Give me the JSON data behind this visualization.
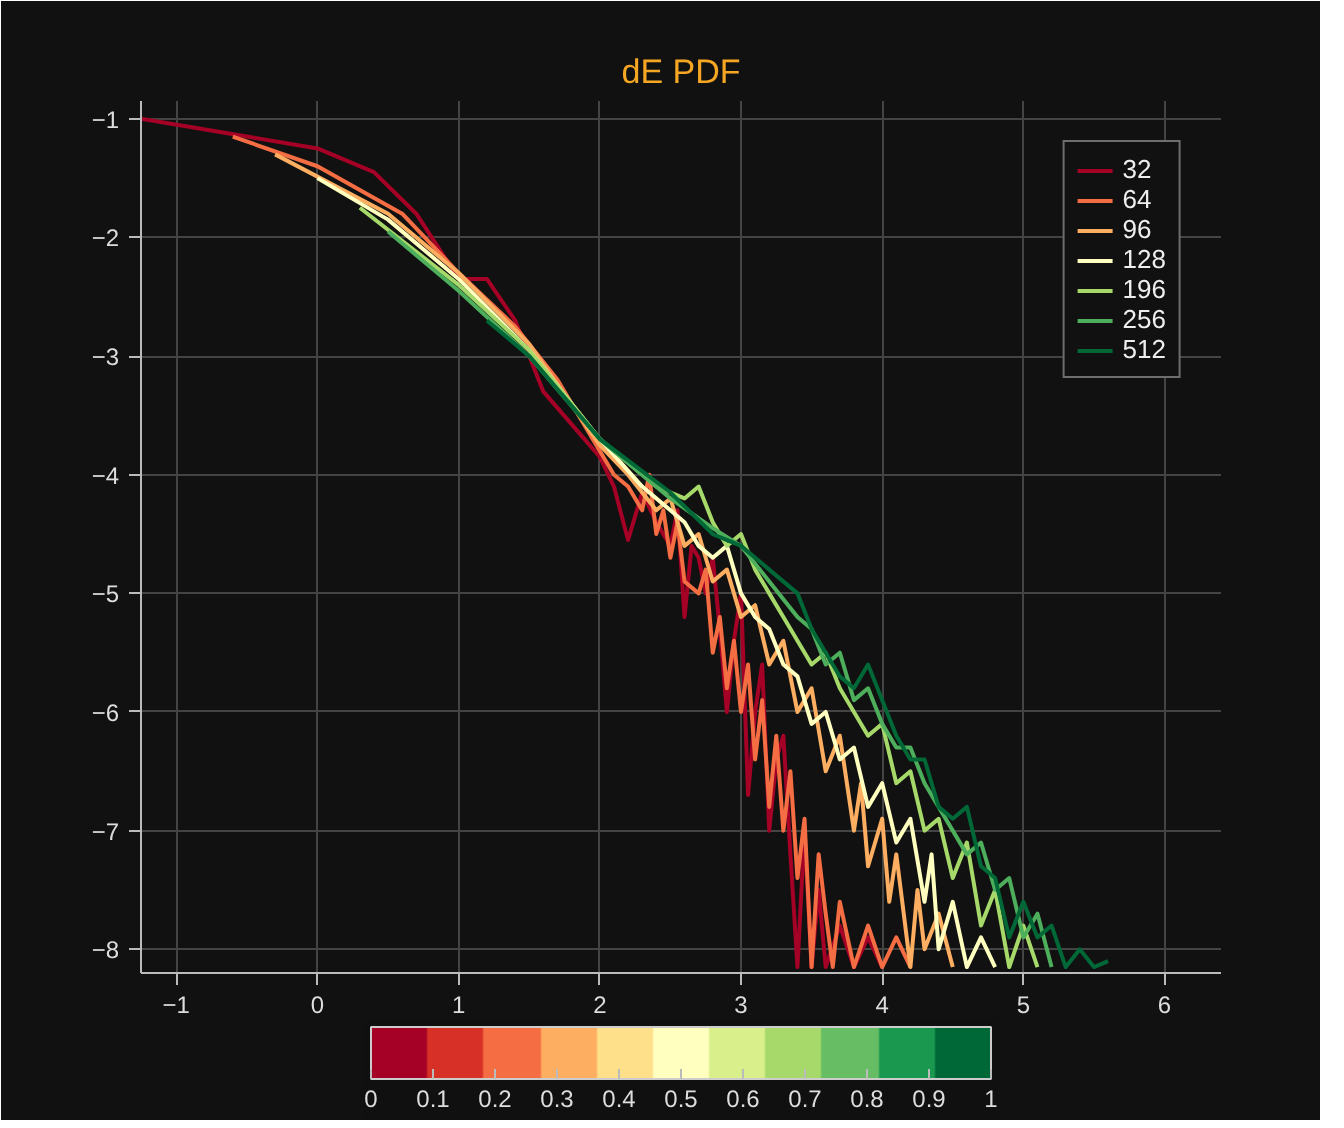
{
  "chart_data": {
    "type": "line",
    "title": "dE PDF",
    "xlim": [
      -1.25,
      6.4
    ],
    "ylim": [
      -8.2,
      -0.85
    ],
    "xticks": [
      -1,
      0,
      1,
      2,
      3,
      4,
      5,
      6
    ],
    "yticks": [
      -1,
      -2,
      -3,
      -4,
      -5,
      -6,
      -7,
      -8
    ],
    "grid": true,
    "legend": "top right",
    "line_style": "solid",
    "clim": [
      0,
      1
    ],
    "cticks": [
      0,
      0.1,
      0.2,
      0.3,
      0.4,
      0.5,
      0.6,
      0.7,
      0.8,
      0.9,
      1
    ],
    "series": [
      {
        "name": "32",
        "color": "#a50026",
        "x": [
          -1.25,
          -0.5,
          0,
          0.4,
          0.7,
          1.0,
          1.2,
          1.4,
          1.6,
          2.0,
          2.1,
          2.2,
          2.3,
          2.4,
          2.5,
          2.55,
          2.6,
          2.65,
          2.7,
          2.75,
          2.8,
          2.85,
          2.9,
          2.95,
          3.0,
          3.05,
          3.1,
          3.15,
          3.2,
          3.25,
          3.3,
          3.35,
          3.4,
          3.45,
          3.5,
          3.55,
          3.6,
          3.7,
          3.8,
          3.9,
          4.0
        ],
        "values": [
          -1.0,
          -1.15,
          -1.25,
          -1.45,
          -1.8,
          -2.35,
          -2.35,
          -2.7,
          -3.3,
          -3.85,
          -4.1,
          -4.55,
          -4.15,
          -4.4,
          -4.6,
          -4.3,
          -5.2,
          -4.6,
          -4.7,
          -5.0,
          -4.7,
          -5.3,
          -6.0,
          -5.4,
          -5.0,
          -6.7,
          -6.0,
          -5.6,
          -7.0,
          -6.4,
          -6.2,
          -7.2,
          -8.15,
          -7.0,
          -8.15,
          -7.5,
          -8.15,
          -7.8,
          -8.15,
          -7.9,
          -8.15
        ]
      },
      {
        "name": "64",
        "color": "#f46d43",
        "x": [
          -0.6,
          0,
          0.6,
          1.0,
          1.4,
          1.7,
          2.0,
          2.1,
          2.2,
          2.3,
          2.35,
          2.4,
          2.45,
          2.5,
          2.55,
          2.6,
          2.7,
          2.75,
          2.8,
          2.85,
          2.9,
          2.95,
          3.0,
          3.05,
          3.1,
          3.15,
          3.2,
          3.25,
          3.3,
          3.35,
          3.4,
          3.45,
          3.5,
          3.55,
          3.6,
          3.65,
          3.7,
          3.8,
          3.9,
          4.0,
          4.1,
          4.2
        ],
        "values": [
          -1.15,
          -1.4,
          -1.8,
          -2.3,
          -2.75,
          -3.2,
          -3.8,
          -4.0,
          -4.1,
          -4.3,
          -4.0,
          -4.5,
          -4.3,
          -4.7,
          -4.4,
          -4.9,
          -5.0,
          -4.8,
          -5.5,
          -5.2,
          -5.8,
          -5.4,
          -6.0,
          -5.6,
          -6.4,
          -5.9,
          -6.8,
          -6.2,
          -7.0,
          -6.5,
          -7.4,
          -6.9,
          -8.15,
          -7.2,
          -7.7,
          -8.15,
          -7.6,
          -8.15,
          -7.8,
          -8.15,
          -7.9,
          -8.15
        ]
      },
      {
        "name": "96",
        "color": "#fdae61",
        "x": [
          -0.3,
          0.5,
          1.0,
          1.5,
          2.0,
          2.2,
          2.4,
          2.5,
          2.6,
          2.7,
          2.8,
          2.9,
          3.0,
          3.1,
          3.2,
          3.3,
          3.4,
          3.5,
          3.6,
          3.7,
          3.8,
          3.85,
          3.9,
          4.0,
          4.05,
          4.1,
          4.2,
          4.25,
          4.3,
          4.4,
          4.5
        ],
        "values": [
          -1.3,
          -1.8,
          -2.3,
          -2.9,
          -3.75,
          -4.0,
          -4.3,
          -4.2,
          -4.6,
          -4.5,
          -4.9,
          -4.8,
          -5.2,
          -5.1,
          -5.6,
          -5.4,
          -6.0,
          -5.8,
          -6.5,
          -6.2,
          -7.0,
          -6.6,
          -7.3,
          -6.9,
          -7.6,
          -7.2,
          -8.15,
          -7.5,
          -8.0,
          -7.7,
          -8.15
        ]
      },
      {
        "name": "128",
        "color": "#ffffbf",
        "x": [
          0,
          0.5,
          1.0,
          1.5,
          2.0,
          2.3,
          2.5,
          2.6,
          2.7,
          2.8,
          2.9,
          3.0,
          3.1,
          3.2,
          3.3,
          3.4,
          3.5,
          3.6,
          3.7,
          3.8,
          3.9,
          4.0,
          4.1,
          4.2,
          4.3,
          4.35,
          4.4,
          4.5,
          4.6,
          4.7,
          4.8
        ],
        "values": [
          -1.5,
          -1.85,
          -2.35,
          -2.95,
          -3.7,
          -4.1,
          -4.3,
          -4.4,
          -4.6,
          -4.7,
          -4.6,
          -5.0,
          -5.2,
          -5.3,
          -5.6,
          -5.7,
          -6.1,
          -6.0,
          -6.4,
          -6.3,
          -6.8,
          -6.6,
          -7.1,
          -6.9,
          -7.6,
          -7.2,
          -8.0,
          -7.6,
          -8.15,
          -7.9,
          -8.15
        ]
      },
      {
        "name": "196",
        "color": "#a6d96a",
        "x": [
          0.3,
          1.0,
          1.5,
          2.0,
          2.4,
          2.6,
          2.7,
          2.8,
          2.9,
          3.0,
          3.1,
          3.2,
          3.3,
          3.4,
          3.5,
          3.6,
          3.7,
          3.8,
          3.9,
          4.0,
          4.1,
          4.2,
          4.3,
          4.4,
          4.5,
          4.6,
          4.7,
          4.8,
          4.9,
          5.0,
          5.1
        ],
        "values": [
          -1.75,
          -2.4,
          -2.95,
          -3.7,
          -4.1,
          -4.2,
          -4.1,
          -4.4,
          -4.6,
          -4.5,
          -4.8,
          -5.0,
          -5.2,
          -5.4,
          -5.6,
          -5.5,
          -5.8,
          -6.0,
          -6.2,
          -6.1,
          -6.6,
          -6.5,
          -7.0,
          -6.9,
          -7.4,
          -7.1,
          -7.8,
          -7.5,
          -8.15,
          -7.8,
          -8.15
        ]
      },
      {
        "name": "256",
        "color": "#4daf5b",
        "x": [
          0.5,
          1.0,
          1.5,
          2.0,
          2.5,
          2.8,
          3.0,
          3.2,
          3.4,
          3.5,
          3.6,
          3.7,
          3.8,
          3.9,
          4.0,
          4.1,
          4.2,
          4.3,
          4.4,
          4.5,
          4.6,
          4.7,
          4.8,
          4.9,
          5.0,
          5.1,
          5.2
        ],
        "values": [
          -1.95,
          -2.45,
          -3.0,
          -3.7,
          -4.2,
          -4.45,
          -4.6,
          -4.9,
          -5.2,
          -5.3,
          -5.6,
          -5.5,
          -5.9,
          -5.8,
          -6.1,
          -6.3,
          -6.3,
          -6.6,
          -6.8,
          -7.0,
          -7.2,
          -7.1,
          -7.5,
          -7.4,
          -7.9,
          -7.7,
          -8.15
        ]
      },
      {
        "name": "512",
        "color": "#006837",
        "x": [
          1.2,
          1.5,
          2.0,
          2.5,
          2.8,
          3.0,
          3.2,
          3.4,
          3.5,
          3.6,
          3.7,
          3.8,
          3.9,
          4.0,
          4.1,
          4.2,
          4.3,
          4.4,
          4.5,
          4.6,
          4.7,
          4.8,
          4.9,
          5.0,
          5.1,
          5.2,
          5.3,
          5.4,
          5.5,
          5.6
        ],
        "values": [
          -2.7,
          -3.0,
          -3.7,
          -4.15,
          -4.5,
          -4.6,
          -4.8,
          -5.0,
          -5.3,
          -5.5,
          -5.7,
          -5.8,
          -5.6,
          -5.9,
          -6.2,
          -6.4,
          -6.4,
          -6.8,
          -6.9,
          -6.8,
          -7.3,
          -7.4,
          -7.9,
          -7.6,
          -7.9,
          -7.8,
          -8.15,
          -8.0,
          -8.15,
          -8.1
        ]
      }
    ]
  }
}
